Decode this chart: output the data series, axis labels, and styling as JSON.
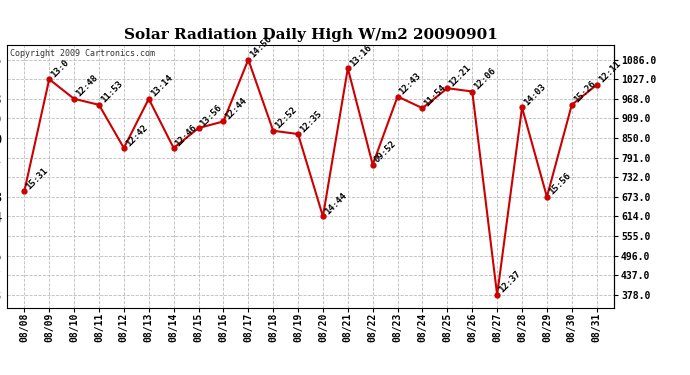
{
  "title": "Solar Radiation Daily High W/m2 20090901",
  "copyright": "Copyright 2009 Cartronics.com",
  "dates": [
    "08/08",
    "08/09",
    "08/10",
    "08/11",
    "08/12",
    "08/13",
    "08/14",
    "08/15",
    "08/16",
    "08/17",
    "08/18",
    "08/19",
    "08/20",
    "08/21",
    "08/22",
    "08/23",
    "08/24",
    "08/25",
    "08/26",
    "08/27",
    "08/28",
    "08/29",
    "08/30",
    "08/31"
  ],
  "values": [
    690,
    1027,
    968,
    950,
    820,
    968,
    820,
    880,
    900,
    1086,
    872,
    862,
    614,
    1060,
    770,
    975,
    940,
    1000,
    990,
    378,
    942,
    673,
    950,
    1010
  ],
  "labels": [
    "15:31",
    "13:0",
    "12:48",
    "11:53",
    "12:42",
    "13:14",
    "12:46",
    "13:56",
    "12:44",
    "14:56",
    "12:52",
    "12:35",
    "14:44",
    "13:16",
    "09:52",
    "12:43",
    "11:54",
    "12:21",
    "12:06",
    "12:37",
    "14:03",
    "15:56",
    "15:26",
    "12:11"
  ],
  "line_color": "#cc0000",
  "marker_color": "#cc0000",
  "bg_color": "#ffffff",
  "grid_color": "#bbbbbb",
  "title_fontsize": 11,
  "label_fontsize": 6.5,
  "tick_fontsize": 7,
  "yticks_right": [
    378.0,
    437.0,
    496.0,
    555.0,
    614.0,
    673.0,
    732.0,
    791.0,
    850.0,
    909.0,
    968.0,
    1027.0,
    1086.0
  ],
  "ylim": [
    340,
    1130
  ],
  "figsize": [
    6.9,
    3.75
  ]
}
